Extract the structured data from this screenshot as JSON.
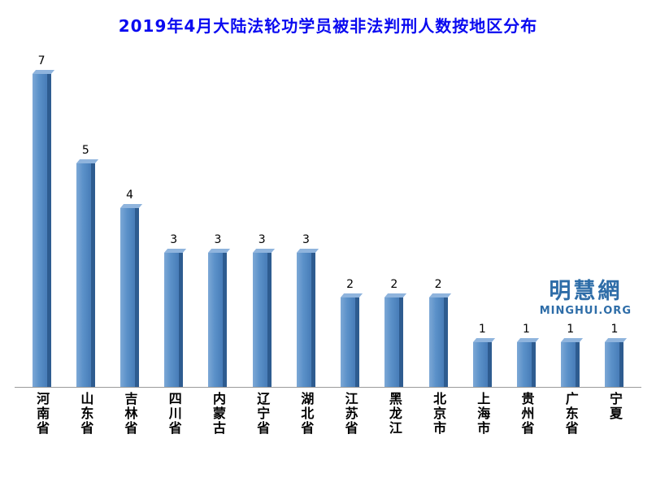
{
  "title": "2019年4月大陆法轮功学员被非法判刑人数按地区分布",
  "watermark": {
    "name": "明慧網",
    "site": "MINGHUI.ORG"
  },
  "colors": {
    "title_blue": "#0a0af0",
    "bar_face": "#4a7fba",
    "bar_side": "#2e5c90",
    "bar_highlight": "#7ca8d6",
    "watermark_blue": "#2e6da8",
    "axis_line": "#9b9b9b"
  },
  "chart_data": {
    "type": "bar",
    "title": "2019年4月大陆法轮功学员被非法判刑人数按地区分布",
    "categories": [
      "河南省",
      "山东省",
      "吉林省",
      "四川省",
      "内蒙古",
      "辽宁省",
      "湖北省",
      "江苏省",
      "黑龙江",
      "北京市",
      "上海市",
      "贵州省",
      "广东省",
      "宁夏"
    ],
    "values": [
      7,
      5,
      4,
      3,
      3,
      3,
      3,
      2,
      2,
      2,
      1,
      1,
      1,
      1
    ],
    "xlabel": "",
    "ylabel": "",
    "ylim": [
      0,
      7.5
    ],
    "grid": false,
    "legend": false,
    "value_labels_shown": true,
    "bar_style": "3d-column"
  }
}
